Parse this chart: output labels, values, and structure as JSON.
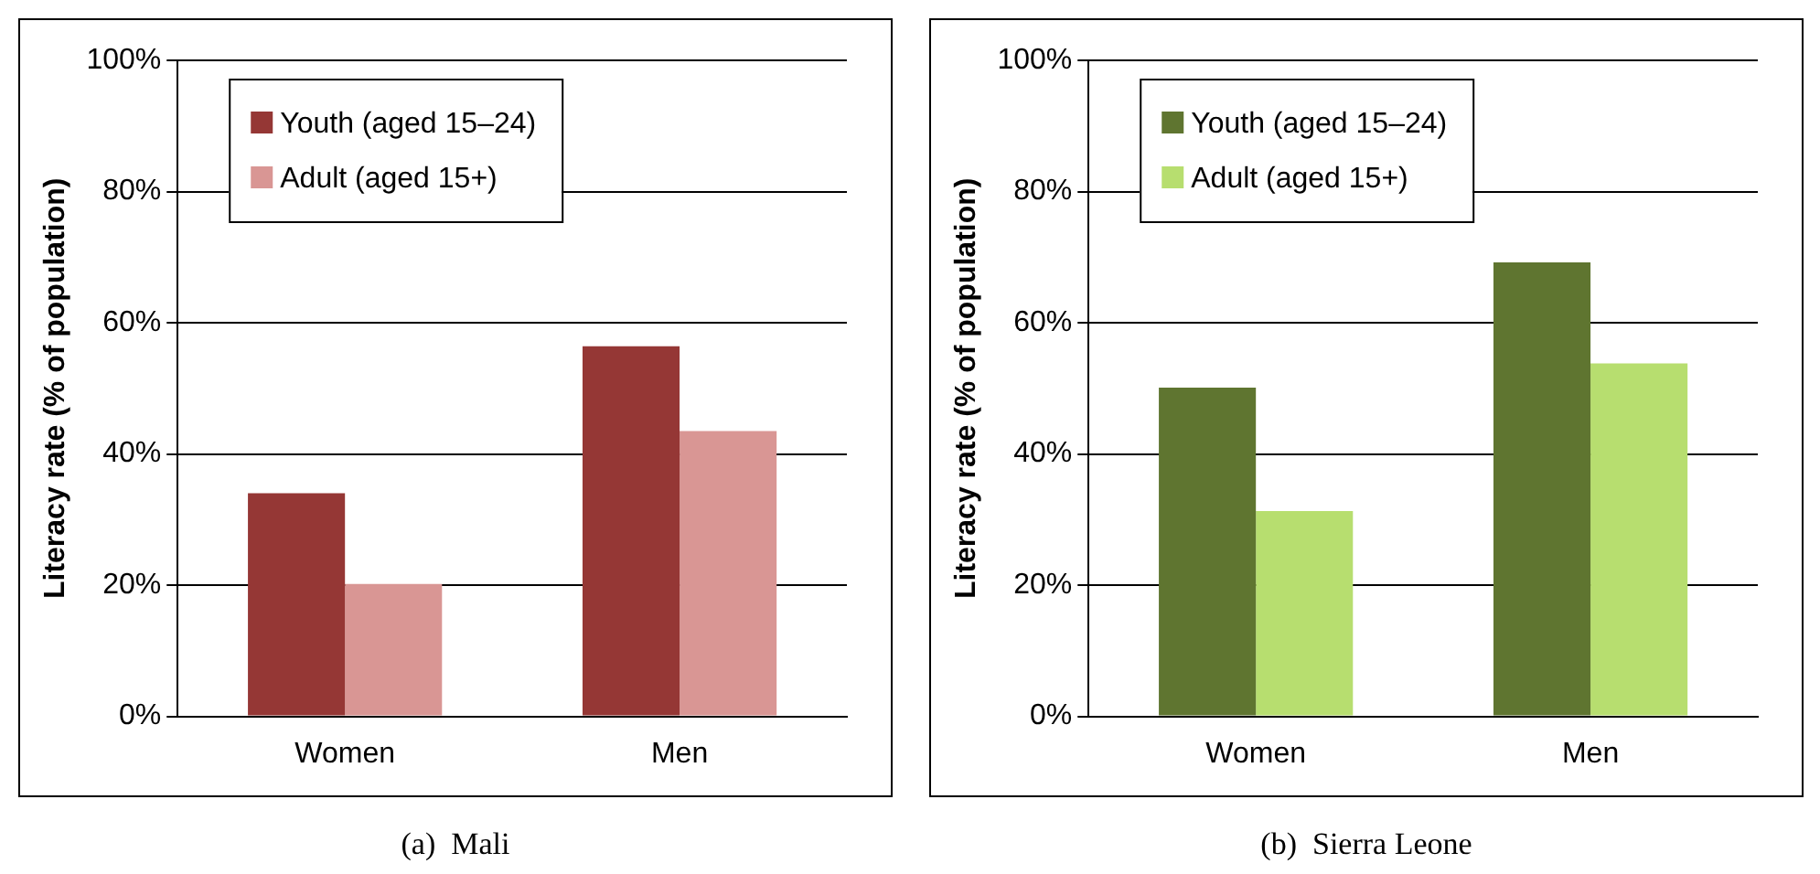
{
  "chart_data": [
    {
      "type": "bar",
      "categories": [
        "Women",
        "Men"
      ],
      "ylabel": "Literacy rate (% of population)",
      "annotations": [
        "(a)  Mali"
      ],
      "series": [
        {
          "name": "Youth (aged 15–24)",
          "color": "#953735",
          "values": [
            34,
            56.4
          ]
        },
        {
          "name": "Adult (aged 15+)",
          "color": "#d99694",
          "values": [
            20.2,
            43.5
          ]
        }
      ],
      "ylim": [
        0,
        100
      ],
      "yticks": [
        {
          "value": 0,
          "label": "0%"
        },
        {
          "value": 20,
          "label": "20%"
        },
        {
          "value": 40,
          "label": "40%"
        },
        {
          "value": 60,
          "label": "60%"
        },
        {
          "value": 80,
          "label": "80%"
        },
        {
          "value": 100,
          "label": "100%"
        }
      ],
      "grid": "y",
      "legend": "top left"
    },
    {
      "type": "bar",
      "categories": [
        "Women",
        "Men"
      ],
      "ylabel": "Literacy rate (% of population)",
      "annotations": [
        "(b)  Sierra Leone"
      ],
      "series": [
        {
          "name": "Youth (aged 15–24)",
          "color": "#5f7530",
          "values": [
            50.1,
            69.2
          ]
        },
        {
          "name": "Adult (aged 15+)",
          "color": "#b7de6f",
          "values": [
            31.3,
            53.8
          ]
        }
      ],
      "ylim": [
        0,
        100
      ],
      "yticks": [
        {
          "value": 0,
          "label": "0%"
        },
        {
          "value": 20,
          "label": "20%"
        },
        {
          "value": 40,
          "label": "40%"
        },
        {
          "value": 60,
          "label": "60%"
        },
        {
          "value": 80,
          "label": "80%"
        },
        {
          "value": 100,
          "label": "100%"
        }
      ],
      "grid": "y",
      "legend": "top left"
    }
  ]
}
